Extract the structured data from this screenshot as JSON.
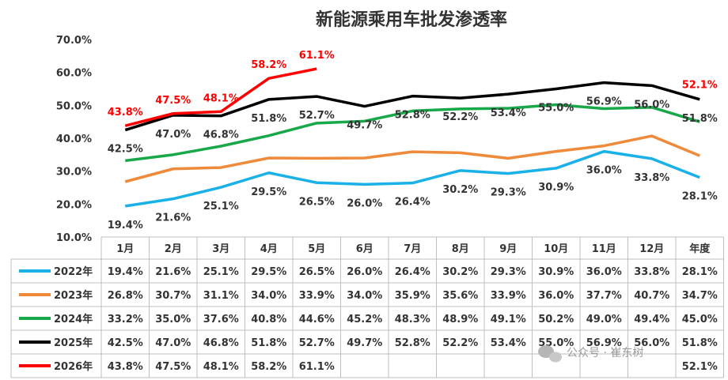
{
  "chart_data": {
    "type": "line",
    "title": "新能源乘用车批发渗透率",
    "categories": [
      "1月",
      "2月",
      "3月",
      "4月",
      "5月",
      "6月",
      "7月",
      "8月",
      "9月",
      "10月",
      "11月",
      "12月",
      "年度"
    ],
    "y_ticks": [
      "10.0%",
      "20.0%",
      "30.0%",
      "40.0%",
      "50.0%",
      "60.0%",
      "70.0%"
    ],
    "ylim": [
      10,
      70
    ],
    "grid": false,
    "legend": "table-left",
    "series": [
      {
        "name": "2022年",
        "color": "#1ab0e8",
        "values": [
          19.4,
          21.6,
          25.1,
          29.5,
          26.5,
          26.0,
          26.4,
          30.2,
          29.3,
          30.9,
          36.0,
          33.8,
          28.1
        ],
        "labels": [
          "19.4%",
          "21.6%",
          "25.1%",
          "29.5%",
          "26.5%",
          "26.0%",
          "26.4%",
          "30.2%",
          "29.3%",
          "30.9%",
          "36.0%",
          "33.8%",
          "28.1%"
        ]
      },
      {
        "name": "2023年",
        "color": "#ee8a3a",
        "values": [
          26.8,
          30.7,
          31.1,
          34.0,
          33.9,
          34.0,
          35.9,
          35.6,
          33.9,
          36.0,
          37.7,
          40.7,
          34.7
        ],
        "labels": [
          "26.8%",
          "30.7%",
          "31.1%",
          "34.0%",
          "33.9%",
          "34.0%",
          "35.9%",
          "35.6%",
          "33.9%",
          "36.0%",
          "37.7%",
          "40.7%",
          "34.7%"
        ]
      },
      {
        "name": "2024年",
        "color": "#18a84a",
        "values": [
          33.2,
          35.0,
          37.6,
          40.8,
          44.6,
          45.2,
          48.3,
          48.9,
          49.1,
          50.2,
          49.0,
          49.4,
          45.0
        ],
        "labels": [
          "33.2%",
          "35.0%",
          "37.6%",
          "40.8%",
          "44.6%",
          "45.2%",
          "48.3%",
          "48.9%",
          "49.1%",
          "50.2%",
          "49.0%",
          "49.4%",
          "45.0%"
        ]
      },
      {
        "name": "2025年",
        "color": "#000000",
        "values": [
          42.5,
          47.0,
          46.8,
          51.8,
          52.7,
          49.7,
          52.8,
          52.2,
          53.4,
          55.0,
          56.9,
          56.0,
          51.8
        ],
        "labels": [
          "42.5%",
          "47.0%",
          "46.8%",
          "51.8%",
          "52.7%",
          "49.7%",
          "52.8%",
          "52.2%",
          "53.4%",
          "55.0%",
          "56.9%",
          "56.0%",
          "51.8%"
        ]
      },
      {
        "name": "2026年",
        "color": "#ff0000",
        "values": [
          43.8,
          47.5,
          48.1,
          58.2,
          61.1,
          null,
          null,
          null,
          null,
          null,
          null,
          null,
          52.1
        ],
        "labels": [
          "43.8%",
          "47.5%",
          "48.1%",
          "58.2%",
          "61.1%",
          "",
          "",
          "",
          "",
          "",
          "",
          "",
          "52.1%"
        ]
      }
    ]
  },
  "watermark": "公众号 · 崔东树"
}
